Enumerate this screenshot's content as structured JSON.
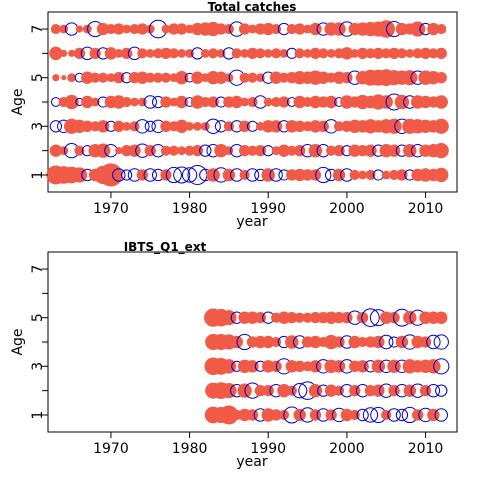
{
  "chart_data": [
    {
      "type": "scatter",
      "title": "Total catches",
      "xlabel": "year",
      "ylabel": "Age",
      "xlim": [
        1962,
        2014
      ],
      "ylim": [
        0.3,
        7.7
      ],
      "x_ticks": [
        1970,
        1980,
        1990,
        2000,
        2010
      ],
      "y_ticks": [
        1,
        2,
        3,
        4,
        5,
        6,
        7
      ],
      "y_tick_labels": [
        "1",
        "",
        "3",
        "",
        "5",
        "",
        "7"
      ],
      "year_range": [
        1963,
        2012
      ],
      "ages": [
        1,
        2,
        3,
        4,
        5,
        6,
        7
      ],
      "colors": {
        "positive": "#f05a46",
        "negative": "#0000cc"
      },
      "residuals": [
        [
          1.4,
          0.6,
          -0.5,
          -0.3,
          0.2,
          0.7,
          0.4
        ],
        [
          1.2,
          0.3,
          -0.6,
          0.4,
          0.1,
          0.2,
          0.3
        ],
        [
          1.1,
          -0.8,
          0.9,
          0.8,
          0.3,
          0.2,
          -0.6
        ],
        [
          0.9,
          0.4,
          0.7,
          -0.2,
          -0.3,
          0.5,
          0.2
        ],
        [
          -0.5,
          -0.4,
          0.5,
          0.6,
          0.6,
          -0.6,
          0.3
        ],
        [
          0.6,
          0.7,
          0.4,
          0.3,
          0.4,
          0.5,
          -0.9
        ],
        [
          1.3,
          0.8,
          0.6,
          -0.4,
          0.4,
          -0.5,
          0.6
        ],
        [
          2.1,
          -0.6,
          -0.4,
          0.6,
          0.3,
          0.6,
          0.4
        ],
        [
          -0.6,
          0.2,
          0.5,
          0.7,
          0.5,
          0.3,
          0.5
        ],
        [
          -0.4,
          0.5,
          0.3,
          0.4,
          -0.4,
          0.5,
          0.3
        ],
        [
          -0.6,
          0.6,
          0.4,
          0.3,
          0.5,
          -0.6,
          0.4
        ],
        [
          0.5,
          -0.7,
          -0.7,
          0.3,
          0.6,
          0.4,
          0.5
        ],
        [
          -0.6,
          0.5,
          -0.4,
          -0.6,
          0.4,
          0.3,
          0.3
        ],
        [
          -0.5,
          -0.6,
          -0.6,
          -0.5,
          0.4,
          0.4,
          -1.2
        ],
        [
          0.5,
          0.4,
          0.5,
          0.5,
          0.4,
          0.5,
          0.3
        ],
        [
          -0.9,
          0.4,
          0.4,
          0.3,
          0.3,
          0.4,
          0.5
        ],
        [
          -1.0,
          0.3,
          0.7,
          0.6,
          0.7,
          0.3,
          0.5
        ],
        [
          -0.8,
          0.4,
          0.3,
          -0.3,
          -0.3,
          0.3,
          0.3
        ],
        [
          -1.4,
          0.5,
          0.3,
          0.7,
          0.6,
          -0.5,
          0.6
        ],
        [
          -0.5,
          -0.5,
          0.3,
          0.4,
          0.3,
          0.3,
          0.7
        ],
        [
          0.7,
          -0.6,
          -0.8,
          0.5,
          0.7,
          0.4,
          0.8
        ],
        [
          -0.8,
          0.7,
          -0.5,
          -0.4,
          0.6,
          0.3,
          0.5
        ],
        [
          0.6,
          0.3,
          0.4,
          0.5,
          0.3,
          -0.5,
          0.4
        ],
        [
          -0.6,
          -0.6,
          -0.5,
          0.6,
          -0.9,
          0.4,
          -0.8
        ],
        [
          0.4,
          0.5,
          0.5,
          0.3,
          0.4,
          0.3,
          0.5
        ],
        [
          -0.6,
          0.4,
          -0.4,
          0.4,
          0.4,
          0.5,
          0.3
        ],
        [
          -0.5,
          0.5,
          0.3,
          -0.6,
          0.3,
          0.4,
          0.5
        ],
        [
          0.7,
          -0.4,
          0.6,
          0.3,
          -0.5,
          0.3,
          0.6
        ],
        [
          -0.6,
          0.3,
          0.6,
          0.4,
          0.6,
          0.4,
          0.4
        ],
        [
          -0.4,
          0.6,
          -0.5,
          0.5,
          0.4,
          0.3,
          -0.5
        ],
        [
          0.5,
          0.4,
          0.6,
          -0.3,
          0.5,
          -0.4,
          0.4
        ],
        [
          0.6,
          0.5,
          0.5,
          0.6,
          0.7,
          0.4,
          0.5
        ],
        [
          0.5,
          -0.6,
          0.4,
          0.4,
          0.6,
          0.3,
          0.3
        ],
        [
          0.5,
          0.7,
          0.6,
          0.6,
          0.8,
          0.5,
          0.6
        ],
        [
          -0.9,
          -0.6,
          0.5,
          0.5,
          0.6,
          0.4,
          -0.6
        ],
        [
          -0.5,
          0.4,
          -0.7,
          0.6,
          0.4,
          0.3,
          0.7
        ],
        [
          0.6,
          0.5,
          0.4,
          -0.3,
          0.6,
          0.4,
          0.7
        ],
        [
          -0.6,
          -0.4,
          0.5,
          0.7,
          0.5,
          0.6,
          -0.8
        ],
        [
          0.4,
          0.6,
          0.7,
          0.5,
          -0.7,
          0.3,
          0.6
        ],
        [
          0.3,
          0.5,
          0.6,
          0.8,
          0.7,
          0.5,
          0.7
        ],
        [
          0.4,
          0.6,
          0.8,
          0.6,
          1.0,
          0.4,
          0.8
        ],
        [
          -0.4,
          -0.5,
          0.6,
          0.9,
          1.0,
          0.5,
          0.9
        ],
        [
          0.3,
          0.7,
          0.8,
          0.7,
          1.1,
          0.4,
          1.2
        ],
        [
          0.4,
          0.6,
          0.9,
          -1.0,
          0.9,
          0.5,
          -0.9
        ],
        [
          0.5,
          -0.5,
          -0.8,
          0.8,
          0.8,
          0.4,
          0.6
        ],
        [
          -0.4,
          0.7,
          0.9,
          -0.6,
          0.9,
          0.3,
          0.5
        ],
        [
          0.6,
          -0.6,
          0.8,
          0.7,
          -0.7,
          0.4,
          0.9
        ],
        [
          0.7,
          0.6,
          0.7,
          0.6,
          0.8,
          0.5,
          -0.5
        ],
        [
          0.6,
          0.7,
          0.6,
          0.5,
          0.7,
          0.4,
          0.6
        ],
        [
          0.8,
          0.9,
          0.9,
          0.7,
          0.5,
          0.5,
          0.4
        ]
      ]
    },
    {
      "type": "scatter",
      "title": "IBTS_Q1_ext",
      "xlabel": "year",
      "ylabel": "Age",
      "xlim": [
        1962,
        2014
      ],
      "ylim": [
        0.3,
        7.7
      ],
      "x_ticks": [
        1970,
        1980,
        1990,
        2000,
        2010
      ],
      "y_ticks": [
        1,
        2,
        3,
        4,
        5,
        6,
        7
      ],
      "y_tick_labels": [
        "1",
        "",
        "3",
        "",
        "5",
        "",
        "7"
      ],
      "year_range": [
        1983,
        2012
      ],
      "ages": [
        1,
        2,
        3,
        4,
        5
      ],
      "colors": {
        "positive": "#f05a46",
        "negative": "#0000cc"
      },
      "residuals": [
        [
          1.1,
          1.0,
          1.2,
          1.0,
          1.3
        ],
        [
          1.0,
          1.1,
          1.1,
          1.0,
          1.2
        ],
        [
          1.4,
          0.9,
          0.8,
          0.9,
          0.9
        ],
        [
          0.4,
          -0.6,
          -0.4,
          0.6,
          -0.5
        ],
        [
          0.6,
          0.8,
          0.7,
          -0.9,
          0.6
        ],
        [
          0.5,
          -0.9,
          0.6,
          0.5,
          0.6
        ],
        [
          -0.6,
          0.5,
          -0.4,
          0.6,
          0.5
        ],
        [
          0.7,
          0.5,
          0.6,
          0.6,
          -0.5
        ],
        [
          0.5,
          -0.6,
          0.5,
          0.4,
          0.4
        ],
        [
          0.4,
          0.7,
          -0.9,
          -0.5,
          0.6
        ],
        [
          -1.0,
          0.4,
          0.6,
          0.7,
          0.5
        ],
        [
          0.6,
          -0.8,
          0.5,
          -0.6,
          0.4
        ],
        [
          -0.8,
          -1.2,
          0.4,
          0.5,
          0.4
        ],
        [
          0.5,
          0.7,
          0.6,
          0.6,
          0.5
        ],
        [
          -0.6,
          -0.5,
          -0.7,
          0.4,
          0.5
        ],
        [
          0.5,
          0.6,
          0.7,
          0.8,
          0.6
        ],
        [
          -0.7,
          0.4,
          0.6,
          0.5,
          0.5
        ],
        [
          0.6,
          -0.6,
          -0.7,
          -0.6,
          0.5
        ],
        [
          0.4,
          0.5,
          0.5,
          0.6,
          -0.7
        ],
        [
          -0.5,
          -0.6,
          0.6,
          0.4,
          0.5
        ],
        [
          -0.8,
          0.5,
          -0.5,
          0.5,
          -1.2
        ],
        [
          -0.9,
          0.6,
          0.7,
          0.6,
          -1.0
        ],
        [
          0.4,
          -0.7,
          -0.6,
          -0.7,
          0.6
        ],
        [
          -0.6,
          0.5,
          0.7,
          -0.4,
          0.5
        ],
        [
          -0.5,
          -0.6,
          -0.6,
          0.6,
          -1.1
        ],
        [
          -0.9,
          0.6,
          0.8,
          -0.8,
          0.7
        ],
        [
          0.5,
          -0.7,
          0.6,
          0.6,
          -0.9
        ],
        [
          -0.7,
          0.5,
          0.7,
          0.5,
          0.6
        ],
        [
          0.6,
          -0.6,
          0.8,
          -0.7,
          0.6
        ],
        [
          -0.6,
          -0.5,
          -0.9,
          -0.8,
          0.6
        ]
      ]
    }
  ]
}
